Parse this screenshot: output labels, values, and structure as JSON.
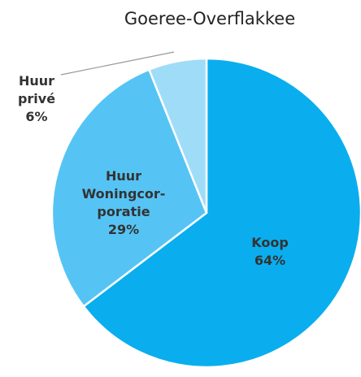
{
  "chart_data": {
    "type": "pie",
    "title": "Goeree-Overflakkee",
    "categories": [
      "Koop",
      "Huur\nWoningcor-\nporatie",
      "Huur\nprivé"
    ],
    "values": [
      64,
      29,
      6
    ],
    "value_labels": [
      "64%",
      "29%",
      "6%"
    ],
    "colors": [
      "#0aaeee",
      "#55c4f4",
      "#9fdcf8"
    ]
  }
}
